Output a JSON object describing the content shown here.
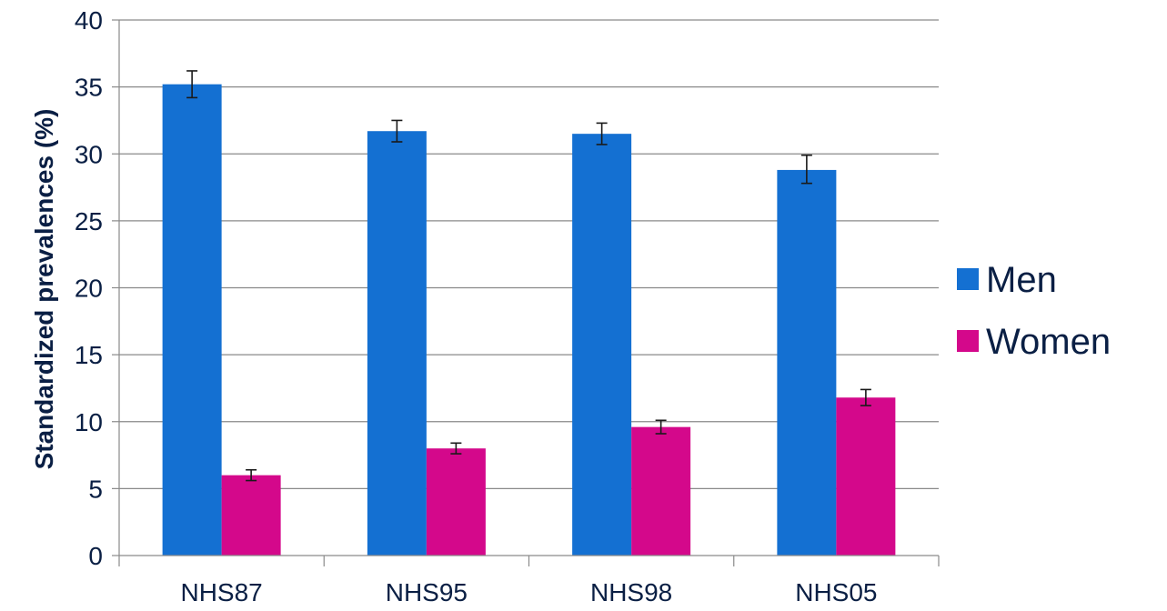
{
  "chart_data": {
    "type": "bar",
    "title": "",
    "xlabel": "",
    "ylabel": "Standardized prevalences (%)",
    "ylim": [
      0,
      40
    ],
    "yticks": [
      0,
      5,
      10,
      15,
      20,
      25,
      30,
      35,
      40
    ],
    "grid": true,
    "legend_position": "right",
    "categories": [
      "NHS87",
      "NHS95",
      "NHS98",
      "NHS05"
    ],
    "series": [
      {
        "name": "Men",
        "color": "#1470d2",
        "values": [
          35.2,
          31.7,
          31.5,
          28.8
        ],
        "error_low": [
          34.2,
          30.9,
          30.7,
          27.8
        ],
        "error_high": [
          36.2,
          32.5,
          32.3,
          29.9
        ]
      },
      {
        "name": "Women",
        "color": "#d4088b",
        "values": [
          6.0,
          8.0,
          9.6,
          11.8
        ],
        "error_low": [
          5.6,
          7.6,
          9.1,
          11.2
        ],
        "error_high": [
          6.4,
          8.4,
          10.1,
          12.4
        ]
      }
    ]
  }
}
